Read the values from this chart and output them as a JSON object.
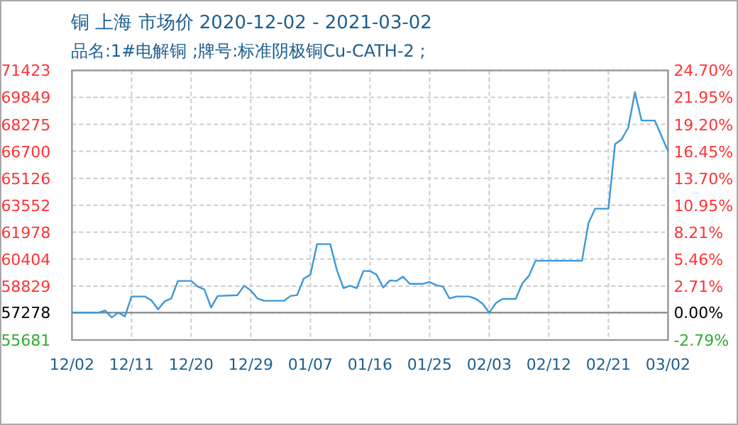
{
  "chart_data": {
    "type": "line",
    "title": "铜 上海 市场价 2020-12-02 - 2021-03-02",
    "subtitle": "品名:1#电解铜 ;牌号:标准阴极铜Cu-CATH-2 ;",
    "x": [
      "2020-12-02",
      "2020-12-06",
      "2020-12-07",
      "2020-12-08",
      "2020-12-09",
      "2020-12-10",
      "2020-12-11",
      "2020-12-13",
      "2020-12-14",
      "2020-12-15",
      "2020-12-16",
      "2020-12-17",
      "2020-12-18",
      "2020-12-20",
      "2020-12-21",
      "2020-12-22",
      "2020-12-23",
      "2020-12-24",
      "2020-12-27",
      "2020-12-28",
      "2020-12-29",
      "2020-12-30",
      "2020-12-31",
      "2021-01-03",
      "2021-01-04",
      "2021-01-05",
      "2021-01-06",
      "2021-01-07",
      "2021-01-08",
      "2021-01-10",
      "2021-01-11",
      "2021-01-12",
      "2021-01-13",
      "2021-01-14",
      "2021-01-15",
      "2021-01-16",
      "2021-01-17",
      "2021-01-18",
      "2021-01-19",
      "2021-01-20",
      "2021-01-21",
      "2021-01-22",
      "2021-01-24",
      "2021-01-25",
      "2021-01-26",
      "2021-01-27",
      "2021-01-28",
      "2021-01-29",
      "2021-01-31",
      "2021-02-01",
      "2021-02-02",
      "2021-02-03",
      "2021-02-04",
      "2021-02-05",
      "2021-02-07",
      "2021-02-08",
      "2021-02-09",
      "2021-02-10",
      "2021-02-17",
      "2021-02-18",
      "2021-02-19",
      "2021-02-21",
      "2021-02-22",
      "2021-02-23",
      "2021-02-24",
      "2021-02-25",
      "2021-02-26",
      "2021-02-28",
      "2021-03-02"
    ],
    "series": [
      {
        "color": "#3c98d8",
        "values": [
          57278,
          57278,
          57400,
          57000,
          57278,
          57060,
          58220,
          58220,
          58000,
          57470,
          57940,
          58110,
          59130,
          59130,
          58800,
          58630,
          57580,
          58250,
          58300,
          58850,
          58580,
          58110,
          57970,
          57970,
          58250,
          58300,
          59270,
          59490,
          61280,
          61280,
          59760,
          58710,
          58850,
          58710,
          59710,
          59710,
          59490,
          58740,
          59160,
          59130,
          59380,
          58960,
          58960,
          59070,
          58880,
          58800,
          58110,
          58220,
          58220,
          58080,
          57800,
          57278,
          57830,
          58080,
          58080,
          58990,
          59430,
          60310,
          60310,
          62520,
          63350,
          63350,
          67120,
          67400,
          68090,
          70160,
          68500,
          68500,
          66700
        ]
      }
    ],
    "xlim": [
      "2020-12-02",
      "2021-03-02"
    ],
    "xticks": [
      {
        "value": "2020-12-02",
        "label": "12/02"
      },
      {
        "value": "2020-12-11",
        "label": "12/11"
      },
      {
        "value": "2020-12-20",
        "label": "12/20"
      },
      {
        "value": "2020-12-29",
        "label": "12/29"
      },
      {
        "value": "2021-01-07",
        "label": "01/07"
      },
      {
        "value": "2021-01-16",
        "label": "01/16"
      },
      {
        "value": "2021-01-25",
        "label": "01/25"
      },
      {
        "value": "2021-02-03",
        "label": "02/03"
      },
      {
        "value": "2021-02-12",
        "label": "02/12"
      },
      {
        "value": "2021-02-21",
        "label": "02/21"
      },
      {
        "value": "2021-03-02",
        "label": "03/02"
      }
    ],
    "ylim": [
      55681,
      71423
    ],
    "yticks": [
      55681,
      57278,
      58829,
      60404,
      61978,
      63552,
      65126,
      66700,
      68275,
      69849,
      71423
    ],
    "y2lim": [
      -2.79,
      24.7
    ],
    "y2ticks": [
      {
        "value": -2.79,
        "label": "-2.79%"
      },
      {
        "value": 0,
        "label": "0.00%"
      },
      {
        "value": 2.71,
        "label": "2.71%"
      },
      {
        "value": 5.46,
        "label": "5.46%"
      },
      {
        "value": 8.21,
        "label": "8.21%"
      },
      {
        "value": 10.95,
        "label": "10.95%"
      },
      {
        "value": 13.7,
        "label": "13.70%"
      },
      {
        "value": 16.45,
        "label": "16.45%"
      },
      {
        "value": 19.2,
        "label": "19.20%"
      },
      {
        "value": 21.95,
        "label": "21.95%"
      },
      {
        "value": 24.7,
        "label": "24.70%"
      }
    ],
    "ref_lines": [
      {
        "axis": "y",
        "value": 57278,
        "color": "#888888"
      }
    ],
    "grid": true,
    "marker": "none",
    "line_style": "solid"
  }
}
